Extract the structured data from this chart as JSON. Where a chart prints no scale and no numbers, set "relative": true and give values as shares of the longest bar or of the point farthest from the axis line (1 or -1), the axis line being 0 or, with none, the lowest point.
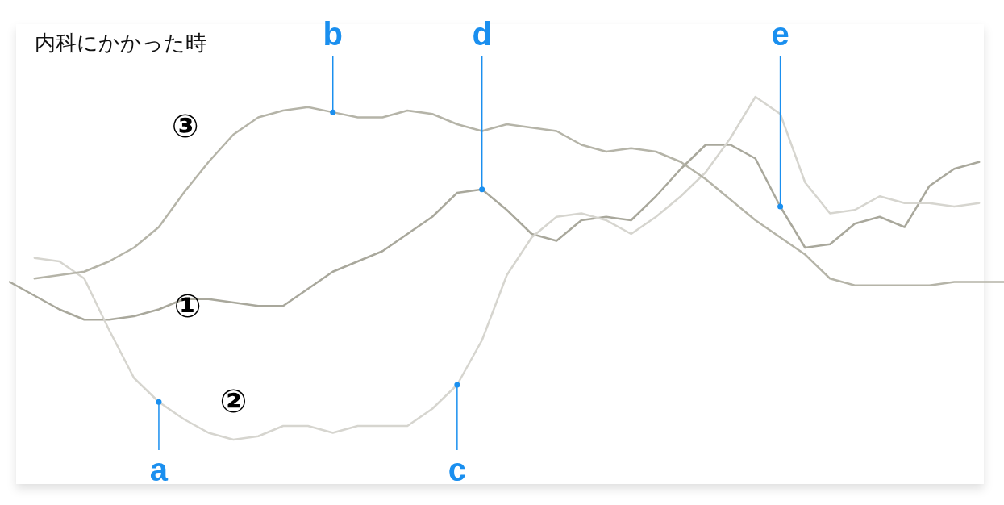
{
  "chart_data": {
    "type": "line",
    "title": "内科にかかった時",
    "relative": true,
    "legend": false,
    "marker": "none",
    "line_style": "solid",
    "categories": [
      null,
      null,
      null,
      null,
      null,
      null,
      null,
      null,
      null,
      null,
      null,
      null,
      null,
      null,
      null,
      null,
      null,
      null,
      null,
      null,
      null,
      null,
      null,
      null,
      null,
      null,
      null,
      null,
      null,
      null,
      null,
      null,
      null,
      null,
      null,
      null,
      null,
      null,
      null,
      null,
      null
    ],
    "series": [
      {
        "name": "①",
        "color": "#a9a89c",
        "values": [
          0.46,
          0.42,
          0.38,
          0.35,
          0.35,
          0.36,
          0.38,
          0.41,
          0.41,
          0.4,
          0.39,
          0.39,
          0.44,
          0.49,
          0.52,
          0.55,
          0.6,
          0.65,
          0.72,
          0.73,
          0.67,
          0.6,
          0.58,
          0.64,
          0.65,
          0.64,
          0.71,
          0.79,
          0.86,
          0.86,
          0.82,
          0.68,
          0.56,
          0.57,
          0.63,
          0.65,
          0.62,
          0.74,
          0.79,
          0.81,
          null
        ]
      },
      {
        "name": "②",
        "color": "#d6d5cf",
        "values": [
          null,
          0.53,
          0.52,
          0.47,
          0.32,
          0.18,
          0.11,
          0.06,
          0.02,
          0.0,
          0.01,
          0.04,
          0.04,
          0.02,
          0.04,
          0.04,
          0.04,
          0.09,
          0.16,
          0.29,
          0.48,
          0.59,
          0.65,
          0.66,
          0.64,
          0.6,
          0.65,
          0.71,
          0.78,
          0.88,
          1.0,
          0.95,
          0.75,
          0.66,
          0.67,
          0.71,
          0.69,
          0.69,
          0.68,
          0.69,
          null
        ]
      },
      {
        "name": "③",
        "color": "#b5b4a8",
        "values": [
          null,
          0.47,
          0.48,
          0.49,
          0.52,
          0.56,
          0.62,
          0.72,
          0.81,
          0.89,
          0.94,
          0.96,
          0.97,
          0.955,
          0.94,
          0.94,
          0.96,
          0.95,
          0.92,
          0.9,
          0.92,
          0.91,
          0.9,
          0.86,
          0.84,
          0.85,
          0.84,
          0.81,
          0.76,
          0.7,
          0.64,
          0.59,
          0.54,
          0.47,
          0.45,
          0.45,
          0.45,
          0.45,
          0.46,
          0.46,
          0.46
        ]
      }
    ],
    "annotations": [
      {
        "text": "a",
        "y": 0.11
      },
      {
        "text": "b",
        "y": 0.955
      },
      {
        "text": "c",
        "y": 0.16
      },
      {
        "text": "d",
        "y": 0.73
      },
      {
        "text": "e",
        "y": 0.68
      }
    ]
  }
}
